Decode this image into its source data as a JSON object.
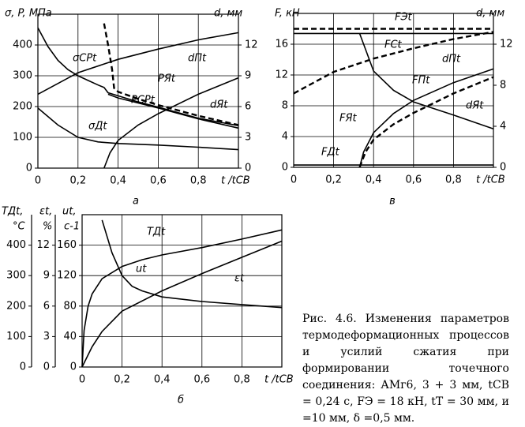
{
  "chart_data": [
    {
      "type": "line",
      "label": "а",
      "ylabel": "σ, P, МПа",
      "y2label": "d, мм",
      "xlabel": "t /tСВ",
      "xlim": [
        0,
        1
      ],
      "xticks": [
        0,
        {
          "value": 0.2,
          "label": "0,2"
        },
        {
          "value": 0.4,
          "label": "0,4"
        },
        {
          "value": 0.6,
          "label": "0,6"
        },
        {
          "value": 0.8,
          "label": "0,8"
        }
      ],
      "ylim": [
        0,
        500
      ],
      "yticks": [
        0,
        100,
        200,
        300,
        400
      ],
      "y2lim": [
        0,
        15
      ],
      "y2ticks": [
        0,
        3,
        6,
        9,
        12
      ],
      "grid": true,
      "series": [
        {
          "name": "σСРt",
          "color": "#000000",
          "dash": false,
          "x": [
            0,
            0.05,
            0.1,
            0.15,
            0.2,
            0.25,
            0.3,
            0.33,
            0.35,
            0.4,
            0.5,
            0.6,
            0.7,
            0.8,
            0.9,
            1
          ],
          "values": [
            456,
            395,
            350,
            320,
            300,
            285,
            270,
            262,
            245,
            235,
            215,
            198,
            180,
            162,
            150,
            138
          ]
        },
        {
          "name": "PЯt",
          "color": "#000000",
          "dash": true,
          "x": [
            0.33,
            0.35,
            0.37,
            0.38,
            0.4,
            0.5,
            0.6,
            0.8,
            1
          ],
          "values": [
            470,
            400,
            320,
            260,
            248,
            225,
            205,
            170,
            140
          ]
        },
        {
          "name": "PСРt",
          "color": "#000000",
          "dash": false,
          "x": [
            0.35,
            0.4,
            0.6,
            0.8,
            1
          ],
          "values": [
            240,
            228,
            195,
            160,
            130
          ]
        },
        {
          "name": "σДt",
          "color": "#000000",
          "dash": false,
          "x": [
            0,
            0.1,
            0.2,
            0.3,
            0.4,
            0.6,
            0.8,
            1
          ],
          "values": [
            195,
            140,
            100,
            85,
            80,
            75,
            68,
            60
          ]
        },
        {
          "name": "dПt",
          "color": "#000000",
          "dash": false,
          "axis": "y2",
          "x": [
            0,
            0.2,
            0.4,
            0.6,
            0.8,
            1
          ],
          "values": [
            7.2,
            9.3,
            10.6,
            11.6,
            12.5,
            13.2
          ]
        },
        {
          "name": "dЯt",
          "color": "#000000",
          "dash": false,
          "axis": "y2",
          "x": [
            0.33,
            0.36,
            0.4,
            0.5,
            0.6,
            0.8,
            1
          ],
          "values": [
            0,
            1.5,
            2.7,
            4.2,
            5.3,
            7.2,
            8.8
          ]
        }
      ]
    },
    {
      "type": "line",
      "label": "в",
      "ylabel": "F, кН",
      "y2label": "d, мм",
      "xlabel": "t /tСВ",
      "xlim": [
        0,
        1
      ],
      "xticks": [
        0,
        {
          "value": 0.2,
          "label": "0,2"
        },
        {
          "value": 0.4,
          "label": "0,4"
        },
        {
          "value": 0.6,
          "label": "0,6"
        },
        {
          "value": 0.8,
          "label": "0,8"
        }
      ],
      "ylim": [
        0,
        20
      ],
      "yticks": [
        0,
        4,
        8,
        12,
        16
      ],
      "y2lim": [
        0,
        15
      ],
      "y2ticks": [
        0,
        4,
        8,
        12
      ],
      "grid": true,
      "series": [
        {
          "name": "FЭt",
          "color": "#000000",
          "dash": true,
          "x": [
            0,
            1
          ],
          "values": [
            18,
            18
          ]
        },
        {
          "name": "FСt",
          "color": "#000000",
          "dash": false,
          "x": [
            0,
            1
          ],
          "values": [
            17.4,
            17.4
          ]
        },
        {
          "name": "dПt",
          "color": "#000000",
          "dash": true,
          "axis": "y2",
          "x": [
            0,
            0.2,
            0.4,
            0.6,
            0.8,
            1
          ],
          "values": [
            7.2,
            9.3,
            10.6,
            11.6,
            12.5,
            13.2
          ]
        },
        {
          "name": "FПt",
          "color": "#000000",
          "dash": false,
          "x": [
            0.33,
            0.35,
            0.4,
            0.5,
            0.6,
            0.8,
            1
          ],
          "values": [
            17.4,
            16,
            12.5,
            10,
            8.5,
            6.8,
            5
          ]
        },
        {
          "name": "dЯt",
          "color": "#000000",
          "dash": true,
          "axis": "y2",
          "x": [
            0.33,
            0.36,
            0.4,
            0.5,
            0.6,
            0.8,
            1
          ],
          "values": [
            0,
            1.5,
            2.7,
            4.2,
            5.3,
            7.2,
            8.8
          ]
        },
        {
          "name": "FЯt",
          "color": "#000000",
          "dash": false,
          "x": [
            0.33,
            0.35,
            0.4,
            0.5,
            0.6,
            0.8,
            1
          ],
          "values": [
            0,
            2,
            4.5,
            7,
            8.7,
            11,
            12.8
          ]
        },
        {
          "name": "FДt",
          "color": "#000000",
          "dash": false,
          "x": [
            0,
            1
          ],
          "values": [
            0.3,
            0.3
          ]
        }
      ]
    },
    {
      "type": "line",
      "label": "б",
      "ylabel": [
        "TДt,",
        "°C"
      ],
      "y2label": [
        "εt,",
        "%"
      ],
      "y3label": [
        "ut,",
        "c-1"
      ],
      "xlabel": "t /tСВ",
      "xlim": [
        0,
        1
      ],
      "xticks": [
        0,
        {
          "value": 0.2,
          "label": "0,2"
        },
        {
          "value": 0.4,
          "label": "0,4"
        },
        {
          "value": 0.6,
          "label": "0,6"
        },
        {
          "value": 0.8,
          "label": "0,8"
        }
      ],
      "ylim": [
        0,
        500
      ],
      "yticks": [
        0,
        100,
        200,
        300,
        400
      ],
      "y2lim": [
        0,
        15
      ],
      "y2ticks": [
        0,
        3,
        6,
        9,
        12
      ],
      "y3lim": [
        0,
        200
      ],
      "y3ticks": [
        0,
        40,
        80,
        120,
        160
      ],
      "grid": true,
      "series": [
        {
          "name": "TДt",
          "color": "#000000",
          "dash": false,
          "x": [
            0,
            0.01,
            0.03,
            0.05,
            0.1,
            0.2,
            0.3,
            0.4,
            0.6,
            0.8,
            1
          ],
          "values": [
            0,
            120,
            200,
            240,
            290,
            330,
            352,
            368,
            392,
            420,
            450
          ]
        },
        {
          "name": "εt",
          "color": "#000000",
          "dash": false,
          "axis": "y2",
          "x": [
            0,
            0.05,
            0.1,
            0.2,
            0.4,
            0.6,
            0.8,
            1
          ],
          "values": [
            0,
            2,
            3.5,
            5.5,
            7.5,
            9.2,
            10.8,
            12.4
          ]
        },
        {
          "name": "ut",
          "color": "#000000",
          "dash": false,
          "axis": "y3",
          "x": [
            0.1,
            0.15,
            0.2,
            0.25,
            0.3,
            0.4,
            0.6,
            0.8,
            1
          ],
          "values": [
            193,
            150,
            120,
            106,
            100,
            92,
            86,
            82,
            78
          ]
        }
      ]
    }
  ],
  "caption": "Рис. 4.6. Изменения параметров термодеформационных процессов и усилий сжатия при формировании точечного соединения: АМг6, 3 + 3 мм, tСВ = 0,24 с, FЭ = 18 кН, tТ = 30 мм, и =10 мм, δ =0,5 мм."
}
